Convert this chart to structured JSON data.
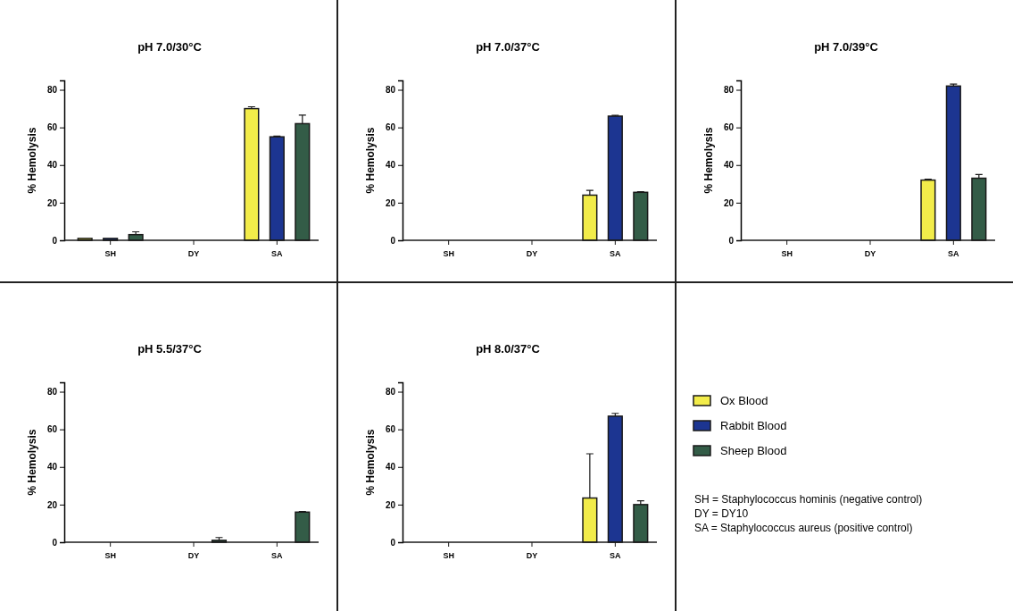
{
  "chart_data": [
    {
      "type": "bar",
      "title": "pH 7.0/30°C",
      "ylabel": "% Hemolysis",
      "categories": [
        "SH",
        "DY",
        "SA"
      ],
      "ylim": [
        0,
        85
      ],
      "yticks": [
        0,
        20,
        40,
        60,
        80
      ],
      "series": [
        {
          "color": "#f2ec4a",
          "values": [
            1,
            0,
            70
          ],
          "errors": [
            null,
            null,
            [
              70,
              71
            ]
          ]
        },
        {
          "color": "#1c3591",
          "values": [
            1,
            0,
            55
          ],
          "errors": [
            null,
            null,
            [
              55,
              55.4
            ]
          ]
        },
        {
          "color": "#335c47",
          "values": [
            3,
            0,
            62
          ],
          "errors": [
            [
              3,
              4.5
            ],
            null,
            [
              62,
              66.5
            ]
          ]
        }
      ]
    },
    {
      "type": "bar",
      "title": "pH 7.0/37°C",
      "ylabel": "% Hemolysis",
      "categories": [
        "SH",
        "DY",
        "SA"
      ],
      "ylim": [
        0,
        85
      ],
      "yticks": [
        0,
        20,
        40,
        60,
        80
      ],
      "series": [
        {
          "color": "#f2ec4a",
          "values": [
            0,
            0,
            24
          ],
          "errors": [
            null,
            null,
            [
              24,
              26.5
            ]
          ]
        },
        {
          "color": "#1c3591",
          "values": [
            0,
            0,
            66
          ],
          "errors": [
            null,
            null,
            [
              66,
              66.4
            ]
          ]
        },
        {
          "color": "#335c47",
          "values": [
            0,
            0,
            25.5
          ],
          "errors": [
            null,
            null,
            [
              25.5,
              25.8
            ]
          ]
        }
      ]
    },
    {
      "type": "bar",
      "title": "pH 7.0/39°C",
      "ylabel": "% Hemolysis",
      "categories": [
        "SH",
        "DY",
        "SA"
      ],
      "ylim": [
        0,
        85
      ],
      "yticks": [
        0,
        20,
        40,
        60,
        80
      ],
      "series": [
        {
          "color": "#f2ec4a",
          "values": [
            0,
            0,
            32
          ],
          "errors": [
            null,
            null,
            [
              32,
              32.5
            ]
          ]
        },
        {
          "color": "#1c3591",
          "values": [
            0,
            0,
            82
          ],
          "errors": [
            null,
            null,
            [
              82,
              83
            ]
          ]
        },
        {
          "color": "#335c47",
          "values": [
            0,
            0,
            33
          ],
          "errors": [
            null,
            null,
            [
              33,
              35
            ]
          ]
        }
      ]
    },
    {
      "type": "bar",
      "title": "pH 5.5/37°C",
      "ylabel": "% Hemolysis",
      "categories": [
        "SH",
        "DY",
        "SA"
      ],
      "ylim": [
        0,
        85
      ],
      "yticks": [
        0,
        20,
        40,
        60,
        80
      ],
      "series": [
        {
          "color": "#f2ec4a",
          "values": [
            0,
            0,
            0
          ]
        },
        {
          "color": "#1c3591",
          "values": [
            0,
            0,
            0
          ]
        },
        {
          "color": "#335c47",
          "values": [
            0,
            1,
            16
          ],
          "errors": [
            null,
            [
              1,
              2.5
            ],
            [
              16,
              16.3
            ]
          ]
        }
      ]
    },
    {
      "type": "bar",
      "title": "pH 8.0/37°C",
      "ylabel": "% Hemolysis",
      "categories": [
        "SH",
        "DY",
        "SA"
      ],
      "ylim": [
        0,
        85
      ],
      "yticks": [
        0,
        20,
        40,
        60,
        80
      ],
      "legend": "right",
      "series": [
        {
          "name": "Ox Blood",
          "color": "#f2ec4a",
          "values": [
            0,
            0,
            23.5
          ],
          "errors": [
            null,
            null,
            [
              23.5,
              47
            ]
          ]
        },
        {
          "name": "Rabbit Blood",
          "color": "#1c3591",
          "values": [
            0,
            0,
            67
          ],
          "errors": [
            null,
            null,
            [
              67,
              68.5
            ]
          ]
        },
        {
          "name": "Sheep Blood",
          "color": "#335c47",
          "values": [
            0,
            0,
            20
          ],
          "errors": [
            null,
            null,
            [
              20,
              22
            ]
          ]
        }
      ]
    },
    {
      "type": "other",
      "annotations": [
        "SH = Staphylococcus hominis (negative control)",
        "DY = DY10",
        "SA = Staphylococcus aureus (positive control)"
      ]
    }
  ]
}
